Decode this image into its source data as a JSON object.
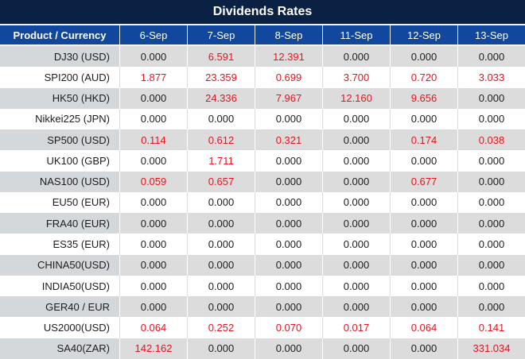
{
  "title": "Dividends Rates",
  "colors": {
    "title_bar_bg": "#0b2143",
    "header_bg": "#11479c",
    "header_text": "#ffffff",
    "row_white_bg": "#ffffff",
    "row_gray_bg": "#dcdcdc",
    "row_gray_product_bg": "#d5d8db",
    "zero_value_text": "#1d1d1f",
    "nonzero_value_text": "#e9131d",
    "separator_on_white_rows": "#dcdcdc",
    "separator_on_gray_rows": "#ffffff"
  },
  "chart_data": {
    "type": "table",
    "title": "Dividends Rates",
    "columns": [
      "Product / Currency",
      "6-Sep",
      "7-Sep",
      "8-Sep",
      "11-Sep",
      "12-Sep",
      "13-Sep"
    ],
    "rows": [
      [
        "DJ30 (USD)",
        "0.000",
        "6.591",
        "12.391",
        "0.000",
        "0.000",
        "0.000"
      ],
      [
        "SPI200 (AUD)",
        "1.877",
        "23.359",
        "0.699",
        "3.700",
        "0.720",
        "3.033"
      ],
      [
        "HK50 (HKD)",
        "0.000",
        "24.336",
        "7.967",
        "12.160",
        "9.656",
        "0.000"
      ],
      [
        "Nikkei225 (JPN)",
        "0.000",
        "0.000",
        "0.000",
        "0.000",
        "0.000",
        "0.000"
      ],
      [
        "SP500 (USD)",
        "0.114",
        "0.612",
        "0.321",
        "0.000",
        "0.174",
        "0.038"
      ],
      [
        "UK100 (GBP)",
        "0.000",
        "1.711",
        "0.000",
        "0.000",
        "0.000",
        "0.000"
      ],
      [
        "NAS100 (USD)",
        "0.059",
        "0.657",
        "0.000",
        "0.000",
        "0.677",
        "0.000"
      ],
      [
        "EU50 (EUR)",
        "0.000",
        "0.000",
        "0.000",
        "0.000",
        "0.000",
        "0.000"
      ],
      [
        "FRA40 (EUR)",
        "0.000",
        "0.000",
        "0.000",
        "0.000",
        "0.000",
        "0.000"
      ],
      [
        "ES35 (EUR)",
        "0.000",
        "0.000",
        "0.000",
        "0.000",
        "0.000",
        "0.000"
      ],
      [
        "CHINA50(USD)",
        "0.000",
        "0.000",
        "0.000",
        "0.000",
        "0.000",
        "0.000"
      ],
      [
        "INDIA50(USD)",
        "0.000",
        "0.000",
        "0.000",
        "0.000",
        "0.000",
        "0.000"
      ],
      [
        "GER40 / EUR",
        "0.000",
        "0.000",
        "0.000",
        "0.000",
        "0.000",
        "0.000"
      ],
      [
        "US2000(USD)",
        "0.064",
        "0.252",
        "0.070",
        "0.017",
        "0.064",
        "0.141"
      ],
      [
        "SA40(ZAR)",
        "142.162",
        "0.000",
        "0.000",
        "0.000",
        "0.000",
        "331.034"
      ]
    ],
    "notes": {
      "value_color_rule": "non-zero values rendered in red, zero values in near-black",
      "striping": "rows alternate gray/white starting with gray",
      "legend_position": "none",
      "grid": "vertical separators between columns only"
    }
  }
}
